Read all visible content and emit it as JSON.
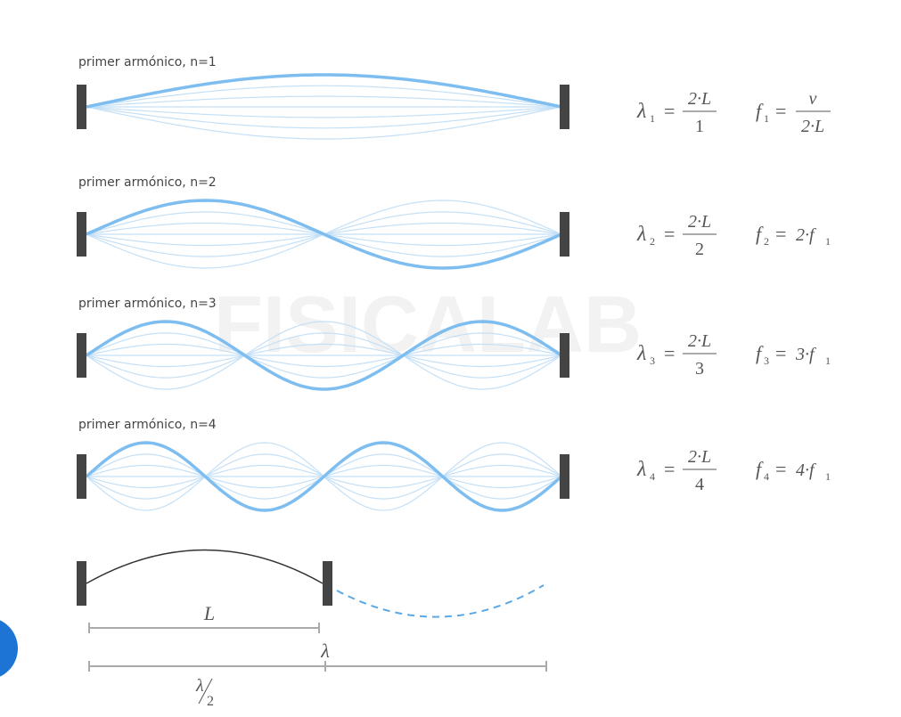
{
  "equals": "=",
  "rows": [
    {
      "label": "primer armónico, n=1",
      "lambda": {
        "symbol": "λ",
        "sub": "1",
        "num": "2·L",
        "den": "1"
      },
      "freq": {
        "symbol": "f",
        "sub": "1",
        "num": "v",
        "den": "2·L"
      }
    },
    {
      "label": "primer armónico, n=2",
      "lambda": {
        "symbol": "λ",
        "sub": "2",
        "num": "2·L",
        "den": "2"
      },
      "freq": {
        "symbol": "f",
        "sub": "2",
        "expr": "2·f",
        "expr_sub": "1"
      }
    },
    {
      "label": "primer armónico, n=3",
      "lambda": {
        "symbol": "λ",
        "sub": "3",
        "num": "2·L",
        "den": "3"
      },
      "freq": {
        "symbol": "f",
        "sub": "3",
        "expr": "3·f",
        "expr_sub": "1"
      }
    },
    {
      "label": "primer armónico, n=4",
      "lambda": {
        "symbol": "λ",
        "sub": "4",
        "num": "2·L",
        "den": "4"
      },
      "freq": {
        "symbol": "f",
        "sub": "4",
        "expr": "4·f",
        "expr_sub": "1"
      }
    }
  ],
  "watermark": "FISICALAB",
  "bottom": {
    "length_label": "L",
    "wavelength_label": "λ",
    "half_symbol": "λ",
    "half_den": "2"
  }
}
